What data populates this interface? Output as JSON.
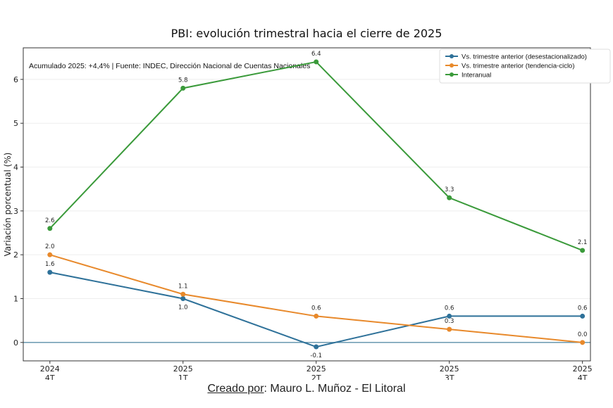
{
  "chart_data": {
    "type": "line",
    "title": "PBI: evolución trimestral hacia el cierre de 2025",
    "annotation": "Acumulado 2025: +4,4% | Fuente: INDEC, Dirección Nacional de Cuentas Nacionales",
    "ylabel": "Variación porcentual (%)",
    "xlabel": "",
    "categories": [
      [
        "2024",
        "4T"
      ],
      [
        "2025",
        "1T"
      ],
      [
        "2025",
        "2T"
      ],
      [
        "2025",
        "3T"
      ],
      [
        "2025",
        "4T"
      ]
    ],
    "yticks": [
      0,
      1,
      2,
      3,
      4,
      5,
      6
    ],
    "ylim": [
      -0.42,
      6.72
    ],
    "grid": "horizontal",
    "legend_position": "top-right",
    "zero_line_color": "#5b8fa8",
    "series": [
      {
        "name": "Vs. trimestre anterior (desestacionalizado)",
        "color": "#2e7199",
        "values": [
          1.6,
          1.0,
          -0.1,
          0.6,
          0.6
        ],
        "labels": [
          "1.6",
          "1.0",
          "-0.1",
          "0.6",
          "0.6"
        ]
      },
      {
        "name": "Vs. trimestre anterior (tendencia-ciclo)",
        "color": "#e8892b",
        "values": [
          2.0,
          1.1,
          0.6,
          0.3,
          0.0
        ],
        "labels": [
          "2.0",
          "1.1",
          "0.6",
          "0.3",
          "0.0"
        ]
      },
      {
        "name": "Interanual",
        "color": "#3a9a3a",
        "values": [
          2.6,
          5.8,
          6.4,
          3.3,
          2.1
        ],
        "labels": [
          "2.6",
          "5.8",
          "6.4",
          "3.3",
          "2.1"
        ]
      }
    ]
  },
  "credit": {
    "prefix": "Creado por",
    "suffix": ": Mauro L. Muñoz - El Litoral"
  }
}
